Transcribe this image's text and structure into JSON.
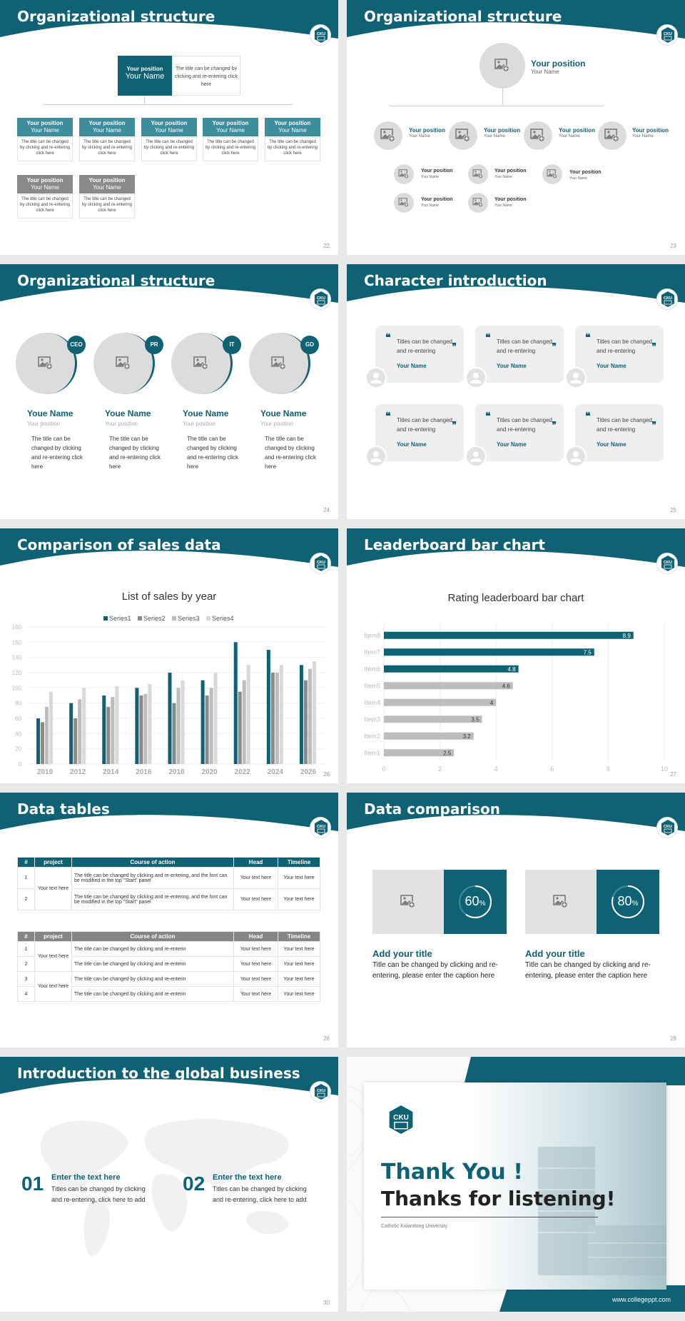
{
  "slides": [
    {
      "title": "Organizational structure",
      "page": "22",
      "top_pos": "Your position",
      "top_name": "Your Name",
      "top_desc": "The title can be changed by clicking and re-entering click here",
      "box_pos": "Your position",
      "box_name": "Your Name",
      "box_desc": "The title can be changed by clicking and re-entering click here"
    },
    {
      "title": "Organizational structure",
      "page": "23",
      "big_pos": "Your position",
      "big_name": "Your Name",
      "pos": "Your position",
      "name": "Your Name"
    },
    {
      "title": "Organizational structure",
      "page": "24",
      "people": [
        {
          "badge": "CEO",
          "name": "Youe Name",
          "pos": "Your position",
          "desc": "The title can be changed by clicking and re-entering click here"
        },
        {
          "badge": "PR",
          "name": "Youe Name",
          "pos": "Your position",
          "desc": "The title can be changed by clicking and re-entering click here"
        },
        {
          "badge": "IT",
          "name": "Youe Name",
          "pos": "Your position",
          "desc": "The title can be changed by clicking and re-entering click here"
        },
        {
          "badge": "GD",
          "name": "Youe Name",
          "pos": "Your position",
          "desc": "The title can be changed by clicking and re-entering click here"
        }
      ]
    },
    {
      "title": "Character introduction",
      "page": "25",
      "quote": "Titles can be changed and re-entering",
      "name": "Your Name"
    },
    {
      "title": "Comparison of sales data",
      "page": "26"
    },
    {
      "title": "Leaderboard bar chart",
      "page": "27"
    },
    {
      "title": "Data tables",
      "page": "28",
      "t1_headers": [
        "#",
        "project",
        "Course of action",
        "Head",
        "Timeline"
      ],
      "t1_rows": [
        {
          "n": "1",
          "course": "The title can be changed by clicking and re-entering, and the font can be modified in the top \"Start\" panel",
          "head": "Your text here",
          "time": "Your text here"
        },
        {
          "n": "2",
          "course": "The title can be changed by clicking and re-entering, and the font can be modified in the top \"Start\" panel",
          "head": "Your text here",
          "time": "Your text here"
        }
      ],
      "t1_project": "Your text here",
      "t2_headers": [
        "#",
        "project",
        "Course of action",
        "Head",
        "Timeline"
      ],
      "t2_rows": [
        {
          "n": "1",
          "course": "The title can be changed by clicking and re-enterin",
          "head": "Your text here",
          "time": "Your text here"
        },
        {
          "n": "2",
          "course": "The title can be changed by clicking and re-enterin",
          "head": "Your text here",
          "time": "Your text here"
        },
        {
          "n": "3",
          "course": "The title can be changed by clicking and re-enterin",
          "head": "Your text here",
          "time": "Your text here"
        },
        {
          "n": "4",
          "course": "The title can be changed by clicking and re-enterin",
          "head": "Your text here",
          "time": "Your text here"
        }
      ],
      "t2_project_a": "Your text here",
      "t2_project_b": "Your text here"
    },
    {
      "title": "Data comparison",
      "page": "29",
      "cards": [
        {
          "value": "60",
          "unit": "%",
          "progress": 0.6,
          "title": "Add your title",
          "desc": "Title can be changed by clicking and re-entering, please enter the caption here"
        },
        {
          "value": "80",
          "unit": "%",
          "progress": 0.8,
          "title": "Add your title",
          "desc": "Title can be changed by clicking and re-entering, please enter the caption here"
        }
      ]
    },
    {
      "title": "Introduction to the global business",
      "page": "30",
      "items": [
        {
          "num": "01",
          "head": "Enter the text here",
          "desc": "Titles can be changed by clicking and re-entering, click here to add"
        },
        {
          "num": "02",
          "head": "Enter the text here",
          "desc": "Titles can be changed by clicking and re-entering, click here to add"
        }
      ]
    },
    {
      "logo": "CKU",
      "thanks1": "Thank You !",
      "thanks2": "Thanks for listening!",
      "university": "Catholic Kwandong University",
      "url": "www.collegeppt.com"
    }
  ],
  "chart_data": [
    {
      "type": "bar",
      "title": "List of sales by year",
      "categories": [
        "2010",
        "2012",
        "2014",
        "2016",
        "2018",
        "2020",
        "2022",
        "2024",
        "2026"
      ],
      "series": [
        {
          "name": "Series1",
          "color": "#0f6274",
          "values": [
            60,
            80,
            90,
            100,
            120,
            110,
            160,
            150,
            130
          ]
        },
        {
          "name": "Series2",
          "color": "#8a8a8a",
          "values": [
            55,
            60,
            75,
            90,
            80,
            90,
            95,
            120,
            110
          ]
        },
        {
          "name": "Series3",
          "color": "#bdbdbd",
          "values": [
            75,
            85,
            88,
            92,
            100,
            100,
            110,
            120,
            125
          ]
        },
        {
          "name": "Series4",
          "color": "#d9d9d9",
          "values": [
            95,
            100,
            102,
            105,
            110,
            120,
            130,
            130,
            135
          ]
        }
      ],
      "ylim": [
        0,
        180
      ],
      "yticks": [
        0,
        20,
        40,
        60,
        80,
        100,
        120,
        140,
        160,
        180
      ],
      "legend": "top"
    },
    {
      "type": "bar",
      "orientation": "horizontal",
      "title": "Rating leaderboard bar chart",
      "categories": [
        "Item8",
        "Item7",
        "Item6",
        "Item5",
        "Item4",
        "Item3",
        "Item2",
        "Item1"
      ],
      "values": [
        8.9,
        7.5,
        4.8,
        4.6,
        4,
        3.5,
        3.2,
        2.5
      ],
      "colors": [
        "#0f6274",
        "#0f6274",
        "#0f6274",
        "#bdbdbd",
        "#bdbdbd",
        "#bdbdbd",
        "#bdbdbd",
        "#bdbdbd"
      ],
      "xlim": [
        0,
        10
      ],
      "xticks": [
        0,
        2,
        4,
        6,
        8,
        10
      ]
    }
  ]
}
